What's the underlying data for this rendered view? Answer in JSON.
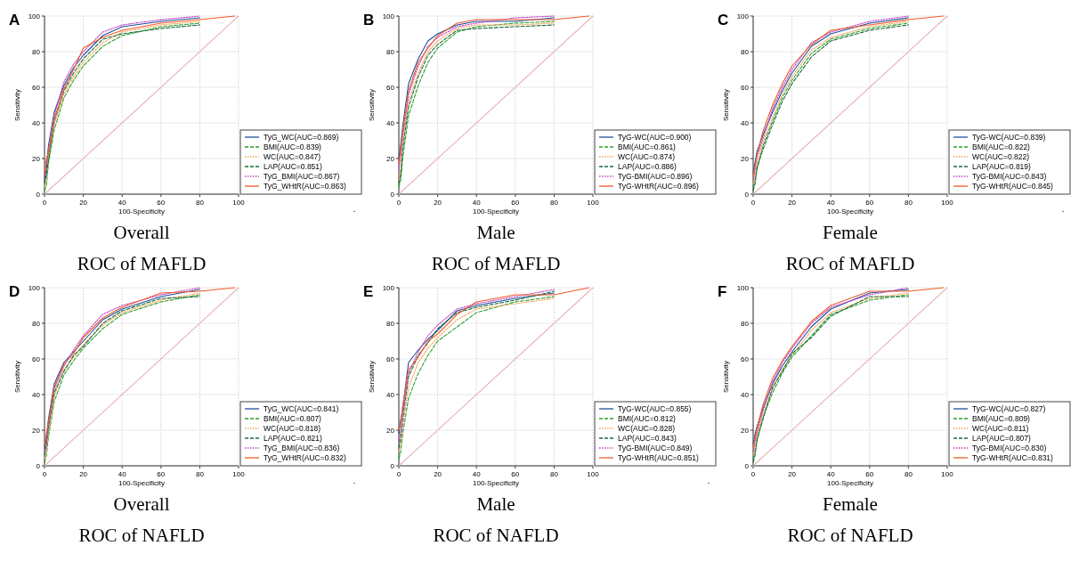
{
  "chart_data": [
    {
      "type": "line",
      "title": "A",
      "xlabel": "100-Specificity",
      "ylabel": "Sensitivity",
      "annotations": [
        "Overall",
        "ROC of MAFLD",
        "."
      ],
      "xlim": [
        0,
        100
      ],
      "ylim": [
        0,
        100
      ],
      "xticks": [
        0,
        20,
        40,
        60,
        80,
        100
      ],
      "yticks": [
        0,
        20,
        40,
        60,
        80,
        100
      ],
      "grid": true,
      "legend": "bottom right",
      "marker": "none",
      "x": [
        0,
        1,
        2,
        5,
        10,
        15,
        20,
        30,
        40,
        60,
        80
      ],
      "series": [
        {
          "name": "TyG_WC(AUC=0.869)",
          "color": "#1f4e9c",
          "line_style": "solid",
          "values": [
            8,
            14,
            27,
            46,
            61,
            71,
            78,
            89,
            94,
            97,
            99
          ]
        },
        {
          "name": "BMI(AUC=0.839)",
          "color": "#2ca02c",
          "line_style": "dashed",
          "values": [
            2,
            5,
            17,
            36,
            54,
            64,
            72,
            83,
            89,
            94,
            96
          ]
        },
        {
          "name": "WC(AUC=0.847)",
          "color": "#f4a460",
          "line_style": "dotted",
          "values": [
            4,
            8,
            21,
            39,
            56,
            66,
            74,
            85,
            91,
            95,
            97
          ]
        },
        {
          "name": "LAP(AUC=0.851)",
          "color": "#1b6b3a",
          "line_style": "dashed",
          "values": [
            6,
            11,
            19,
            41,
            58,
            68,
            76,
            87,
            90,
            93,
            95
          ]
        },
        {
          "name": "TyG_BMI(AUC=0.867)",
          "color": "#c040c0",
          "line_style": "dotted",
          "values": [
            10,
            17,
            25,
            44,
            63,
            73,
            80,
            91,
            95,
            98,
            100
          ]
        },
        {
          "name": "TyG_WHtR(AUC=0.863)",
          "color": "#f05a28",
          "line_style": "solid",
          "x": [
            0,
            1,
            2,
            5,
            10,
            15,
            20,
            30,
            40,
            60,
            80,
            98
          ],
          "values": [
            12,
            20,
            23,
            42,
            59,
            70,
            82,
            88,
            92,
            96,
            98,
            100
          ]
        },
        {
          "color": "#e8b4b4",
          "line_style": "solid",
          "x": [
            0,
            100
          ],
          "values": [
            0,
            100
          ]
        }
      ]
    },
    {
      "type": "line",
      "title": "B",
      "xlabel": "100-Specificity",
      "ylabel": "Sensitivity",
      "annotations": [
        "Male",
        "ROC of MAFLD"
      ],
      "xlim": [
        0,
        100
      ],
      "ylim": [
        0,
        100
      ],
      "xticks": [
        0,
        20,
        40,
        60,
        80,
        100
      ],
      "yticks": [
        0,
        20,
        40,
        60,
        80,
        100
      ],
      "grid": true,
      "legend": "bottom right",
      "marker": "none",
      "x": [
        0,
        1,
        2,
        5,
        10,
        15,
        20,
        30,
        40,
        60,
        80
      ],
      "series": [
        {
          "name": "TyG-WC(AUC=0.900)",
          "color": "#1f4e9c",
          "line_style": "solid",
          "values": [
            20,
            28,
            38,
            62,
            76,
            86,
            90,
            95,
            97,
            97,
            99
          ]
        },
        {
          "name": "BMI(AUC=0.861)",
          "color": "#2ca02c",
          "line_style": "dashed",
          "values": [
            4,
            8,
            20,
            44,
            61,
            74,
            82,
            91,
            94,
            96,
            97
          ]
        },
        {
          "name": "WC(AUC=0.874)",
          "color": "#f4a460",
          "line_style": "dotted",
          "values": [
            8,
            14,
            28,
            52,
            68,
            80,
            86,
            93,
            95,
            95,
            96
          ]
        },
        {
          "name": "LAP(AUC=0.886)",
          "color": "#1b6b3a",
          "line_style": "dashed",
          "values": [
            6,
            11,
            25,
            49,
            66,
            78,
            84,
            92,
            93,
            94,
            95
          ]
        },
        {
          "name": "TyG-BMI(AUC=0.896)",
          "color": "#c040c0",
          "line_style": "dotted",
          "values": [
            14,
            22,
            32,
            56,
            72,
            83,
            88,
            94,
            96,
            99,
            100
          ]
        },
        {
          "name": "TyG-WHtR(AUC=0.896)",
          "color": "#f05a28",
          "line_style": "solid",
          "x": [
            0,
            1,
            2,
            5,
            10,
            15,
            20,
            30,
            40,
            60,
            80,
            98
          ],
          "values": [
            17,
            25,
            35,
            58,
            74,
            82,
            89,
            96,
            98,
            98,
            98,
            100
          ]
        },
        {
          "color": "#e8b4b4",
          "line_style": "solid",
          "x": [
            0,
            100
          ],
          "values": [
            0,
            100
          ]
        }
      ]
    },
    {
      "type": "line",
      "title": "C",
      "xlabel": "100-Specificity",
      "ylabel": "Sensitivity",
      "annotations": [
        "Female",
        "ROC of MAFLD",
        "."
      ],
      "xlim": [
        0,
        100
      ],
      "ylim": [
        0,
        100
      ],
      "xticks": [
        0,
        20,
        40,
        60,
        80,
        100
      ],
      "yticks": [
        0,
        20,
        40,
        60,
        80,
        100
      ],
      "grid": true,
      "legend": "bottom right",
      "marker": "none",
      "x": [
        0,
        1,
        2,
        5,
        10,
        15,
        20,
        30,
        40,
        60,
        80
      ],
      "series": [
        {
          "name": "TyG-WC(AUC=0.839)",
          "color": "#1f4e9c",
          "line_style": "solid",
          "values": [
            12,
            18,
            24,
            33,
            46,
            58,
            68,
            83,
            90,
            96,
            99
          ]
        },
        {
          "name": "BMI(AUC=0.822)",
          "color": "#2ca02c",
          "line_style": "dashed",
          "values": [
            4,
            8,
            14,
            27,
            41,
            54,
            64,
            79,
            87,
            93,
            96
          ]
        },
        {
          "name": "WC(AUC=0.822)",
          "color": "#f4a460",
          "line_style": "dotted",
          "values": [
            6,
            11,
            17,
            29,
            43,
            56,
            66,
            81,
            88,
            94,
            97
          ]
        },
        {
          "name": "LAP(AUC=0.819)",
          "color": "#1b6b3a",
          "line_style": "dashed",
          "values": [
            2,
            6,
            15,
            25,
            39,
            52,
            62,
            77,
            86,
            92,
            95
          ]
        },
        {
          "name": "TyG-BMI(AUC=0.843)",
          "color": "#c040c0",
          "line_style": "dotted",
          "values": [
            8,
            14,
            21,
            31,
            48,
            60,
            70,
            85,
            91,
            97,
            100
          ]
        },
        {
          "name": "TyG-WHtR(AUC=0.845)",
          "color": "#f05a28",
          "line_style": "solid",
          "x": [
            0,
            1,
            2,
            5,
            10,
            15,
            20,
            30,
            40,
            60,
            80,
            98
          ],
          "values": [
            10,
            16,
            22,
            35,
            50,
            62,
            72,
            84,
            92,
            95,
            98,
            100
          ]
        },
        {
          "color": "#e8b4b4",
          "line_style": "solid",
          "x": [
            0,
            100
          ],
          "values": [
            0,
            100
          ]
        }
      ]
    },
    {
      "type": "line",
      "title": "D",
      "xlabel": "100-Specificity",
      "ylabel": "Sensitivity",
      "annotations": [
        "Overall",
        "ROC of NAFLD",
        "."
      ],
      "xlim": [
        0,
        100
      ],
      "ylim": [
        0,
        100
      ],
      "xticks": [
        0,
        20,
        40,
        60,
        80,
        100
      ],
      "yticks": [
        0,
        20,
        40,
        60,
        80,
        100
      ],
      "grid": true,
      "legend": "bottom right",
      "marker": "none",
      "x": [
        0,
        1,
        2,
        5,
        10,
        15,
        20,
        30,
        40,
        60,
        80
      ],
      "series": [
        {
          "name": "TyG_WC(AUC=0.841)",
          "color": "#1f4e9c",
          "line_style": "solid",
          "values": [
            10,
            16,
            26,
            46,
            58,
            64,
            70,
            82,
            88,
            95,
            99
          ]
        },
        {
          "name": "BMI(AUC=0.807)",
          "color": "#2ca02c",
          "line_style": "dashed",
          "values": [
            2,
            6,
            16,
            36,
            51,
            59,
            66,
            77,
            85,
            92,
            96
          ]
        },
        {
          "name": "WC(AUC=0.818)",
          "color": "#f4a460",
          "line_style": "dotted",
          "values": [
            4,
            9,
            19,
            39,
            54,
            61,
            68,
            79,
            86,
            93,
            97
          ]
        },
        {
          "name": "LAP(AUC=0.821)",
          "color": "#1b6b3a",
          "line_style": "dashed",
          "values": [
            6,
            12,
            21,
            41,
            53,
            62,
            67,
            80,
            87,
            94,
            95
          ]
        },
        {
          "name": "TyG_BMI(AUC=0.836)",
          "color": "#c040c0",
          "line_style": "dotted",
          "values": [
            8,
            14,
            23,
            43,
            56,
            65,
            73,
            85,
            90,
            96,
            100
          ]
        },
        {
          "name": "TyG_WHtR(AUC=0.832)",
          "color": "#f05a28",
          "line_style": "solid",
          "x": [
            0,
            1,
            2,
            5,
            10,
            15,
            20,
            30,
            40,
            60,
            80,
            98
          ],
          "values": [
            12,
            18,
            24,
            44,
            57,
            63,
            72,
            83,
            89,
            97,
            98,
            100
          ]
        },
        {
          "color": "#e8b4b4",
          "line_style": "solid",
          "x": [
            0,
            100
          ],
          "values": [
            0,
            100
          ]
        }
      ]
    },
    {
      "type": "line",
      "title": "E",
      "xlabel": "100-Specificity",
      "ylabel": "Sensitivity",
      "annotations": [
        "Male",
        "ROC of NAFLD",
        "."
      ],
      "xlim": [
        0,
        100
      ],
      "ylim": [
        0,
        100
      ],
      "xticks": [
        0,
        20,
        40,
        60,
        80,
        100
      ],
      "yticks": [
        0,
        20,
        40,
        60,
        80,
        100
      ],
      "grid": true,
      "legend": "bottom right",
      "marker": "none",
      "x": [
        0,
        1,
        2,
        5,
        10,
        15,
        20,
        30,
        40,
        60,
        80
      ],
      "series": [
        {
          "name": "TyG-WC(AUC=0.855)",
          "color": "#1f4e9c",
          "line_style": "solid",
          "values": [
            18,
            26,
            32,
            58,
            65,
            71,
            76,
            87,
            90,
            94,
            97
          ]
        },
        {
          "name": "BMI(AUC=0.812)",
          "color": "#2ca02c",
          "line_style": "dashed",
          "values": [
            4,
            8,
            18,
            38,
            52,
            62,
            70,
            78,
            86,
            92,
            95
          ]
        },
        {
          "name": "WC(AUC=0.828)",
          "color": "#f4a460",
          "line_style": "dotted",
          "values": [
            8,
            12,
            22,
            44,
            58,
            66,
            72,
            82,
            88,
            91,
            94
          ]
        },
        {
          "name": "LAP(AUC=0.843)",
          "color": "#1b6b3a",
          "line_style": "dashed",
          "values": [
            10,
            16,
            26,
            50,
            62,
            69,
            77,
            86,
            89,
            93,
            98
          ]
        },
        {
          "name": "TyG-BMI(AUC=0.849)",
          "color": "#c040c0",
          "line_style": "dotted",
          "values": [
            14,
            20,
            29,
            52,
            64,
            73,
            79,
            88,
            91,
            95,
            99
          ]
        },
        {
          "name": "TyG-WHtR(AUC=0.851)",
          "color": "#f05a28",
          "line_style": "solid",
          "x": [
            0,
            1,
            2,
            5,
            10,
            15,
            20,
            30,
            40,
            60,
            80,
            98
          ],
          "values": [
            20,
            24,
            34,
            54,
            61,
            70,
            74,
            85,
            92,
            96,
            96,
            100
          ]
        },
        {
          "color": "#e8b4b4",
          "line_style": "solid",
          "x": [
            0,
            100
          ],
          "values": [
            0,
            100
          ]
        }
      ]
    },
    {
      "type": "line",
      "title": "F",
      "xlabel": "100-Specificity",
      "ylabel": "Sensitivity",
      "annotations": [
        "Female",
        "ROC of NAFLD"
      ],
      "xlim": [
        0,
        100
      ],
      "ylim": [
        0,
        100
      ],
      "xticks": [
        0,
        20,
        40,
        60,
        80,
        100
      ],
      "yticks": [
        0,
        20,
        40,
        60,
        80,
        100
      ],
      "grid": true,
      "legend": "bottom right",
      "marker": "none",
      "x": [
        0,
        1,
        2,
        5,
        10,
        15,
        20,
        30,
        40,
        60,
        80
      ],
      "series": [
        {
          "name": "TyG-WC(AUC=0.827)",
          "color": "#1f4e9c",
          "line_style": "solid",
          "values": [
            12,
            18,
            22,
            32,
            46,
            56,
            64,
            78,
            88,
            97,
            99
          ]
        },
        {
          "name": "BMI(AUC=0.809)",
          "color": "#2ca02c",
          "line_style": "dashed",
          "values": [
            4,
            8,
            14,
            27,
            41,
            52,
            61,
            73,
            85,
            93,
            96
          ]
        },
        {
          "name": "WC(AUC=0.811)",
          "color": "#f4a460",
          "line_style": "dotted",
          "values": [
            6,
            11,
            17,
            29,
            43,
            54,
            62,
            76,
            86,
            94,
            97
          ]
        },
        {
          "name": "LAP(AUC=0.807)",
          "color": "#1b6b3a",
          "line_style": "dashed",
          "values": [
            2,
            6,
            15,
            26,
            44,
            53,
            63,
            72,
            84,
            95,
            95
          ]
        },
        {
          "name": "TyG-BMI(AUC=0.830)",
          "color": "#c040c0",
          "line_style": "dotted",
          "values": [
            8,
            14,
            19,
            31,
            47,
            58,
            66,
            80,
            89,
            96,
            100
          ]
        },
        {
          "name": "TyG-WHtR(AUC=0.831)",
          "color": "#f05a28",
          "line_style": "solid",
          "x": [
            0,
            1,
            2,
            5,
            10,
            15,
            20,
            30,
            40,
            60,
            80,
            98
          ],
          "values": [
            10,
            16,
            21,
            34,
            49,
            59,
            67,
            81,
            90,
            98,
            98,
            100
          ]
        },
        {
          "color": "#e8b4b4",
          "line_style": "solid",
          "x": [
            0,
            100
          ],
          "values": [
            0,
            100
          ]
        }
      ]
    }
  ]
}
